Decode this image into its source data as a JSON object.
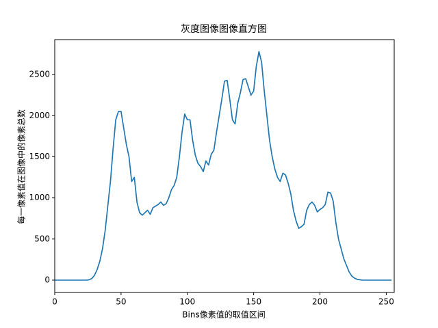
{
  "chart_data": {
    "type": "line",
    "title": "灰度图像图像直方图",
    "xlabel": "Bins像素值的取值区间",
    "ylabel": "每一像素值在图像中的像素总数",
    "x": [
      0,
      2,
      4,
      6,
      8,
      10,
      12,
      14,
      16,
      18,
      20,
      22,
      24,
      26,
      28,
      30,
      32,
      34,
      36,
      38,
      40,
      42,
      44,
      46,
      48,
      50,
      52,
      54,
      56,
      58,
      60,
      62,
      64,
      66,
      68,
      70,
      72,
      74,
      76,
      78,
      80,
      82,
      84,
      86,
      88,
      90,
      92,
      94,
      96,
      98,
      100,
      102,
      104,
      106,
      108,
      110,
      112,
      114,
      116,
      118,
      120,
      122,
      124,
      126,
      128,
      130,
      132,
      134,
      136,
      138,
      140,
      142,
      144,
      146,
      148,
      150,
      152,
      154,
      156,
      158,
      160,
      162,
      164,
      166,
      168,
      170,
      172,
      174,
      176,
      178,
      180,
      182,
      184,
      186,
      188,
      190,
      192,
      194,
      196,
      198,
      200,
      202,
      204,
      206,
      208,
      210,
      212,
      214,
      216,
      218,
      220,
      222,
      224,
      226,
      228,
      230,
      232,
      234,
      236,
      238,
      240,
      242,
      244,
      246,
      248,
      250,
      252,
      254
    ],
    "series": [
      {
        "color": "#1f77b4",
        "values": [
          0,
          0,
          0,
          0,
          0,
          0,
          0,
          0,
          0,
          0,
          0,
          0,
          0,
          5,
          20,
          60,
          130,
          230,
          380,
          600,
          900,
          1200,
          1600,
          1950,
          2050,
          2050,
          1850,
          1650,
          1500,
          1200,
          1250,
          950,
          820,
          790,
          820,
          850,
          800,
          880,
          900,
          920,
          950,
          910,
          930,
          1000,
          1100,
          1150,
          1250,
          1500,
          1800,
          2020,
          1950,
          1950,
          1700,
          1520,
          1420,
          1380,
          1320,
          1450,
          1400,
          1530,
          1580,
          1800,
          2000,
          2200,
          2420,
          2430,
          2200,
          1950,
          1900,
          2150,
          2280,
          2440,
          2450,
          2350,
          2250,
          2300,
          2600,
          2780,
          2650,
          2300,
          2000,
          1700,
          1500,
          1350,
          1250,
          1200,
          1300,
          1280,
          1180,
          1050,
          850,
          720,
          630,
          650,
          680,
          850,
          920,
          950,
          910,
          830,
          860,
          880,
          920,
          1070,
          1060,
          960,
          700,
          500,
          380,
          260,
          180,
          100,
          50,
          25,
          10,
          5,
          0,
          0,
          0,
          0,
          0,
          0,
          0,
          0,
          0,
          0,
          0,
          0
        ]
      }
    ],
    "xlim": [
      0,
      256
    ],
    "ylim": [
      -150,
      2925
    ],
    "xticks": [
      0,
      50,
      100,
      150,
      200,
      250
    ],
    "yticks": [
      0,
      500,
      1000,
      1500,
      2000,
      2500
    ]
  }
}
